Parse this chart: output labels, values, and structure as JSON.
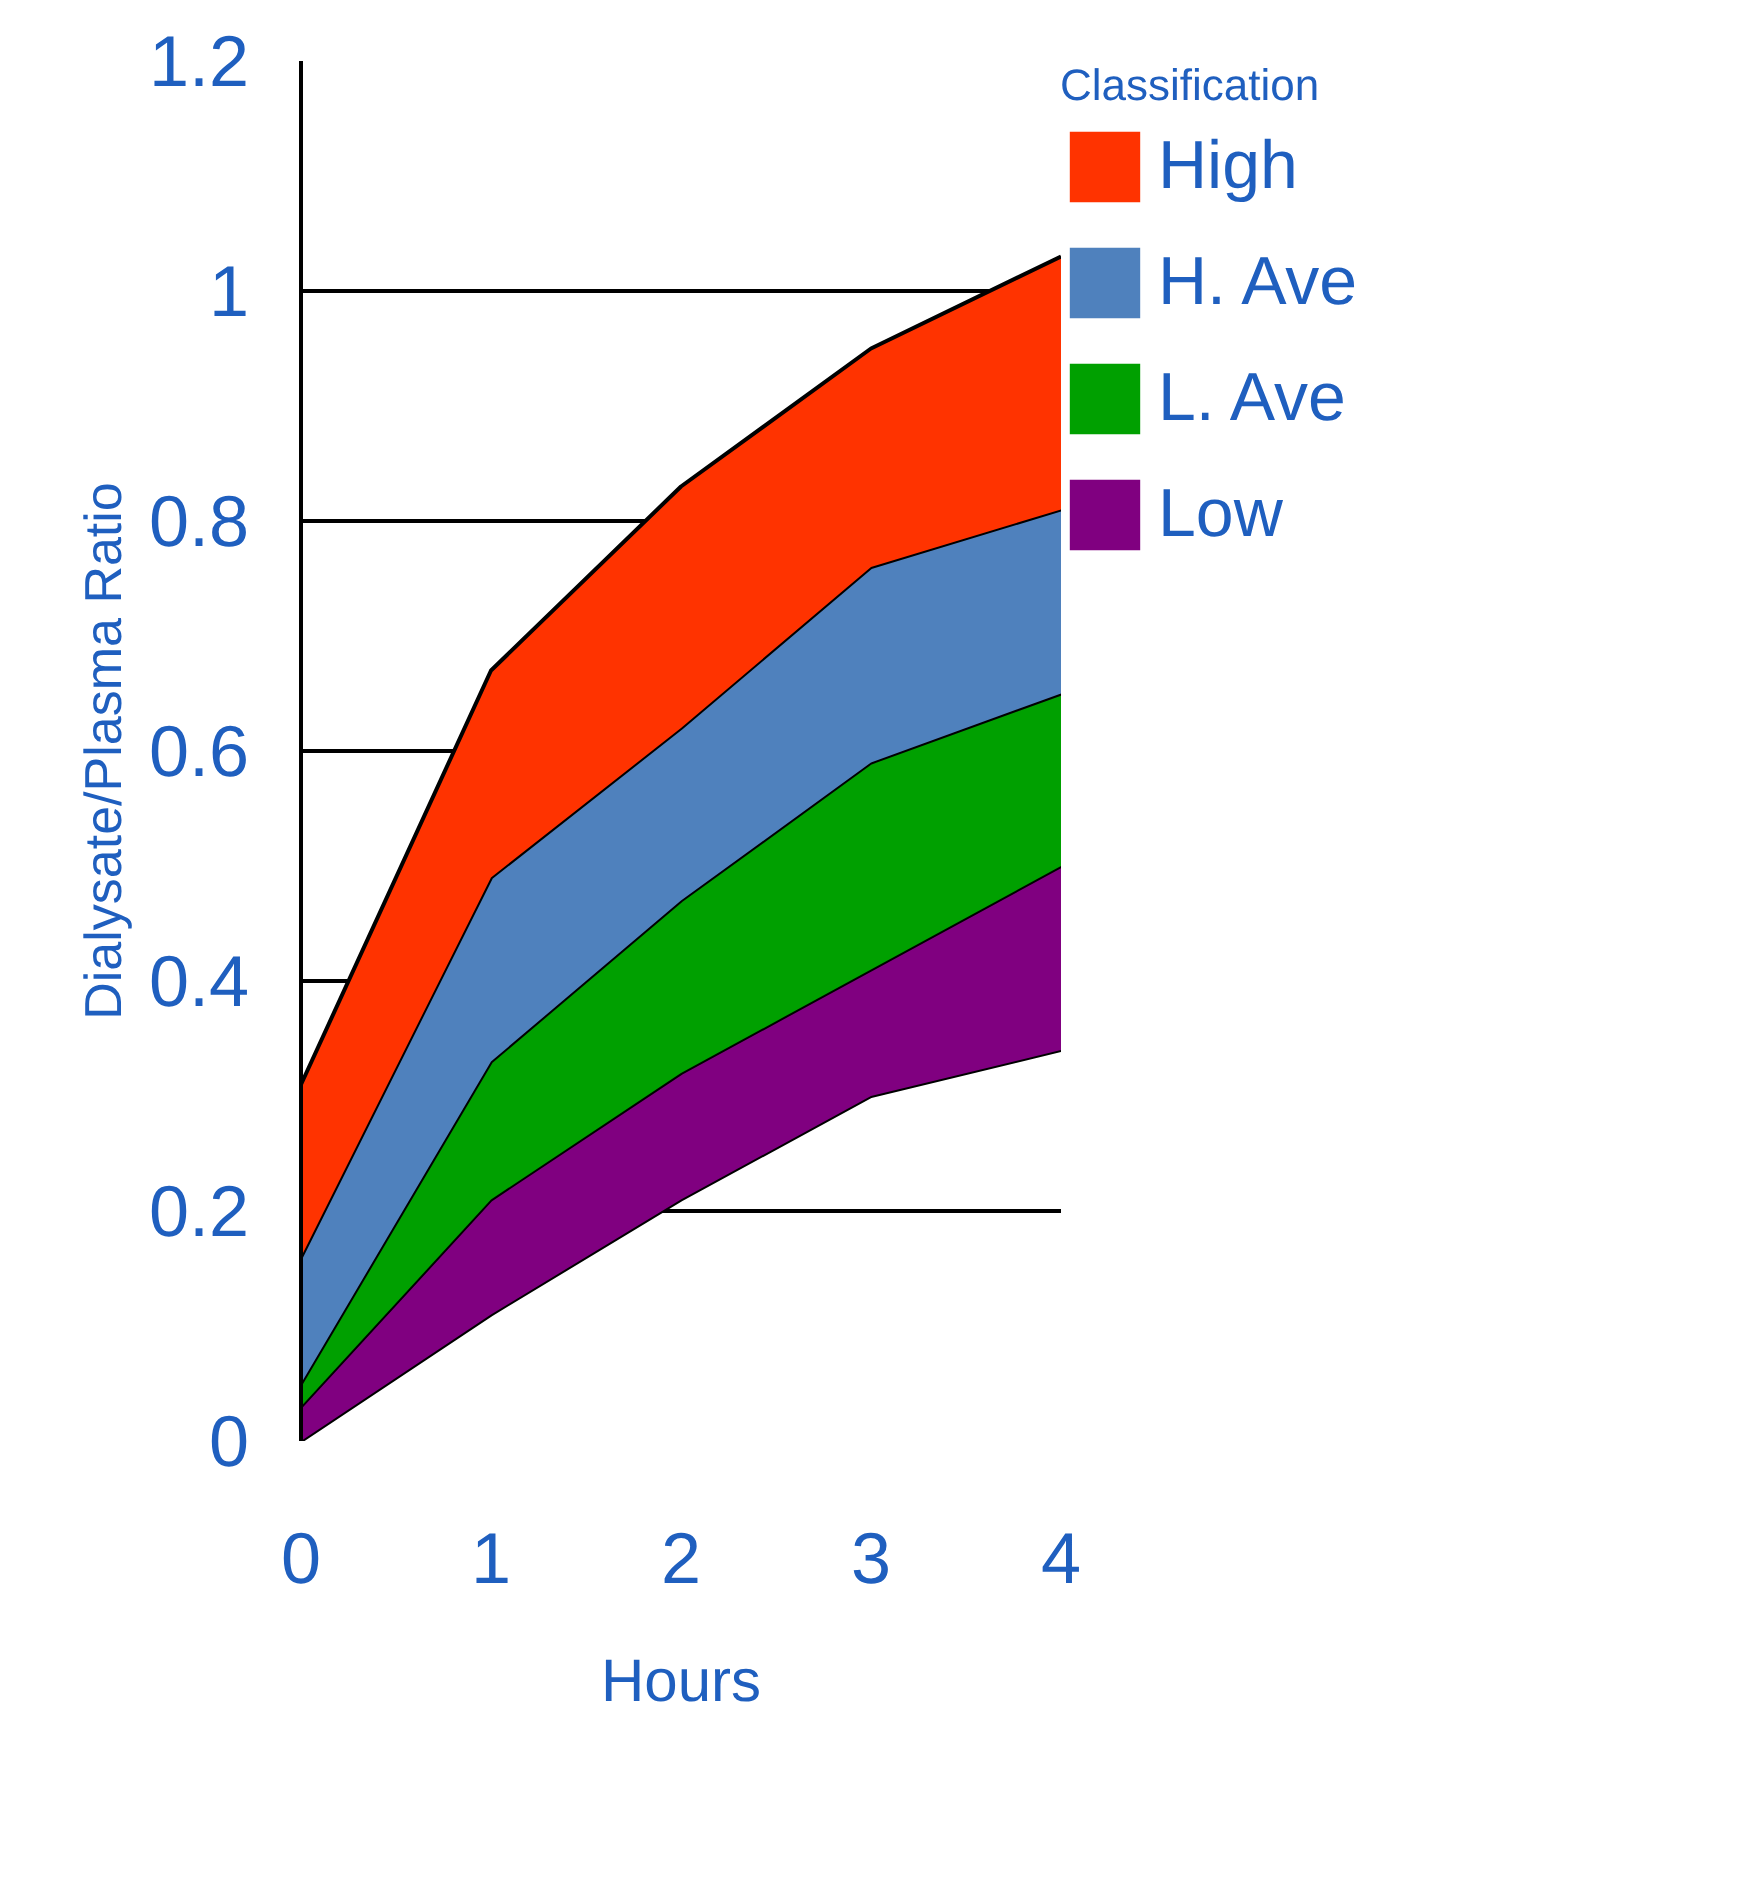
{
  "chart_data": {
    "type": "area",
    "stacked": true,
    "xlabel": "Hours",
    "ylabel": "Dialysate/Plasma Ratio",
    "legend_title": "Classification",
    "x": [
      0,
      1,
      2,
      3,
      4
    ],
    "series": [
      {
        "color": "#ffffff",
        "values": [
          0,
          0.11,
          0.21,
          0.3,
          0.34
        ]
      },
      {
        "name": "Low",
        "color": "#800080",
        "values": [
          0.03,
          0.1,
          0.11,
          0.11,
          0.16
        ]
      },
      {
        "name": "L. Ave",
        "color": "#00a000",
        "values": [
          0.02,
          0.12,
          0.15,
          0.18,
          0.15
        ]
      },
      {
        "name": "H. Ave",
        "color": "#4f81bd",
        "values": [
          0.11,
          0.16,
          0.15,
          0.17,
          0.16
        ]
      },
      {
        "name": "High",
        "color": "#ff3300",
        "values": [
          0.15,
          0.18,
          0.21,
          0.19,
          0.22
        ]
      }
    ],
    "xlim": [
      0,
      4
    ],
    "ylim": [
      0,
      1.2
    ],
    "xticks": [
      0,
      1,
      2,
      3,
      4
    ],
    "yticks": [
      0,
      0.2,
      0.4,
      0.6,
      0.8,
      1,
      1.2
    ],
    "grid": "y",
    "legend": "top right"
  }
}
